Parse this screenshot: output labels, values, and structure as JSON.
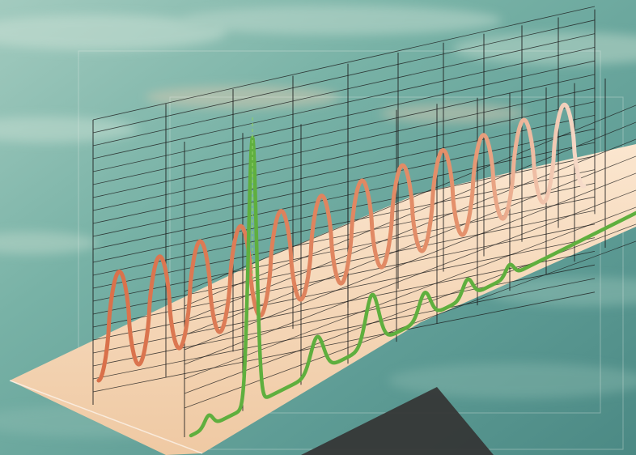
{
  "illustration": {
    "curves": [
      {
        "name": "oscillating-wave",
        "color": "#dd7a52",
        "fade_color": "#f1d0bb"
      },
      {
        "name": "spectrum-peaks",
        "color": "#5faf3e"
      }
    ],
    "colors": {
      "water_light": "#9cc9bd",
      "water_mid": "#6fa9a0",
      "water_dark": "#4f8d87",
      "platform": "#f5d9b9",
      "grid": "#1b1b1b",
      "shadow": "#333333"
    }
  }
}
